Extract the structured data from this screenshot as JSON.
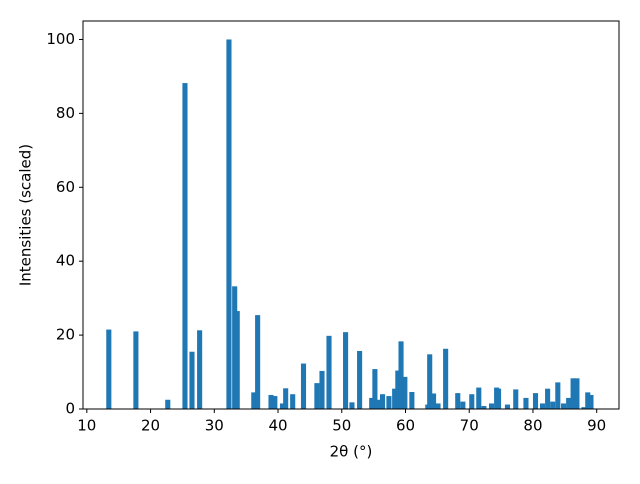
{
  "chart_data": {
    "type": "bar",
    "color": "#1f77b4",
    "x_label": "2θ (°)",
    "y_label": "Intensities (scaled)",
    "x": [
      13.45,
      17.7,
      22.7,
      25.4,
      26.5,
      27.7,
      32.3,
      33.2,
      33.6,
      36.2,
      36.8,
      38.9,
      39.5,
      40.7,
      41.2,
      42.3,
      44.0,
      46.1,
      46.9,
      48.0,
      50.6,
      51.6,
      52.8,
      54.7,
      55.2,
      55.6,
      56.4,
      57.4,
      58.3,
      58.8,
      59.3,
      59.9,
      61.0,
      63.5,
      63.8,
      64.4,
      65.1,
      66.3,
      68.2,
      69.0,
      70.4,
      71.5,
      72.3,
      73.5,
      74.3,
      74.6,
      76.0,
      77.3,
      78.9,
      80.4,
      81.5,
      82.3,
      83.1,
      83.9,
      84.8,
      85.6,
      86.3,
      86.9,
      88.0,
      88.6,
      89.1
    ],
    "values": [
      21.5,
      21,
      2.5,
      88.2,
      15.5,
      21.3,
      100,
      33.2,
      26.5,
      4.5,
      25.4,
      3.8,
      3.5,
      1.5,
      5.6,
      4,
      12.3,
      7,
      10.3,
      19.8,
      20.8,
      1.8,
      15.7,
      3,
      10.8,
      2.5,
      4,
      3.5,
      5.5,
      10.4,
      18.3,
      8.7,
      4.6,
      1.2,
      14.8,
      4.2,
      1.5,
      16.3,
      4.3,
      2,
      4,
      5.8,
      0.8,
      1.5,
      5.8,
      5.5,
      1.2,
      5.3,
      3,
      4.3,
      1.5,
      5.5,
      2,
      7.2,
      1.5,
      3,
      8.3,
      8.3,
      0.5,
      4.5,
      3.8
    ],
    "xlim": [
      9.4,
      93.5
    ],
    "ylim": [
      0,
      105
    ],
    "xticks": [
      10,
      20,
      30,
      40,
      50,
      60,
      70,
      80,
      90
    ],
    "yticks": [
      0,
      20,
      40,
      60,
      80,
      100
    ]
  }
}
